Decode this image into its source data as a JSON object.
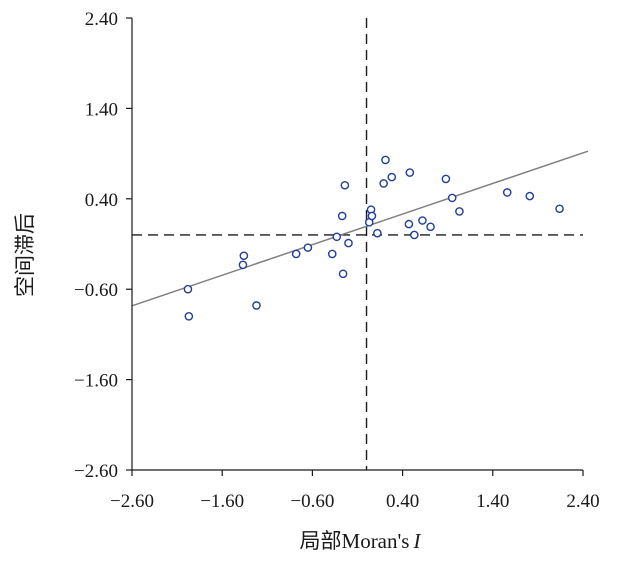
{
  "chart_data": {
    "type": "scatter",
    "title": "",
    "xlabel_main": "局部Moran's",
    "xlabel_italic": "I",
    "ylabel": "空间滞后",
    "xlim": [
      -2.6,
      2.4
    ],
    "ylim": [
      -2.6,
      2.4
    ],
    "x_ticks": [
      -2.6,
      -1.6,
      -0.6,
      0.4,
      1.4,
      2.4
    ],
    "y_ticks": [
      -2.6,
      -1.6,
      -0.6,
      0.4,
      1.4,
      2.4
    ],
    "x_tick_labels": [
      "−2.60",
      "−1.60",
      "−0.60",
      "0.40",
      "1.40",
      "2.40"
    ],
    "y_tick_labels": [
      "−2.60",
      "−1.60",
      "−0.60",
      "0.40",
      "1.40",
      "2.40"
    ],
    "grid": false,
    "reference_lines": {
      "x": 0.0,
      "y": 0.0,
      "style": "dashed"
    },
    "fit_line": {
      "slope": 0.34,
      "intercept": 0.1,
      "x_range": [
        -2.6,
        2.4
      ]
    },
    "points": [
      {
        "x": -1.98,
        "y": -0.6
      },
      {
        "x": -1.97,
        "y": -0.9
      },
      {
        "x": -1.37,
        "y": -0.33
      },
      {
        "x": -1.36,
        "y": -0.23
      },
      {
        "x": -1.22,
        "y": -0.78
      },
      {
        "x": -0.78,
        "y": -0.21
      },
      {
        "x": -0.65,
        "y": -0.14
      },
      {
        "x": -0.38,
        "y": -0.21
      },
      {
        "x": -0.33,
        "y": -0.02
      },
      {
        "x": -0.27,
        "y": 0.21
      },
      {
        "x": -0.26,
        "y": -0.43
      },
      {
        "x": -0.24,
        "y": 0.55
      },
      {
        "x": -0.2,
        "y": -0.09
      },
      {
        "x": 0.03,
        "y": 0.14
      },
      {
        "x": 0.05,
        "y": 0.28
      },
      {
        "x": 0.06,
        "y": 0.21
      },
      {
        "x": 0.12,
        "y": 0.02
      },
      {
        "x": 0.19,
        "y": 0.57
      },
      {
        "x": 0.21,
        "y": 0.83
      },
      {
        "x": 0.28,
        "y": 0.64
      },
      {
        "x": 0.47,
        "y": 0.12
      },
      {
        "x": 0.48,
        "y": 0.69
      },
      {
        "x": 0.53,
        "y": 0.0
      },
      {
        "x": 0.62,
        "y": 0.16
      },
      {
        "x": 0.71,
        "y": 0.09
      },
      {
        "x": 0.88,
        "y": 0.62
      },
      {
        "x": 0.95,
        "y": 0.41
      },
      {
        "x": 1.03,
        "y": 0.26
      },
      {
        "x": 1.56,
        "y": 0.47
      },
      {
        "x": 1.81,
        "y": 0.43
      },
      {
        "x": 2.14,
        "y": 0.29
      }
    ]
  },
  "colors": {
    "marker": "#1f3f99",
    "fit_line": "#808080",
    "axis": "#1a1a1a",
    "reference": "#1a1a1a"
  }
}
